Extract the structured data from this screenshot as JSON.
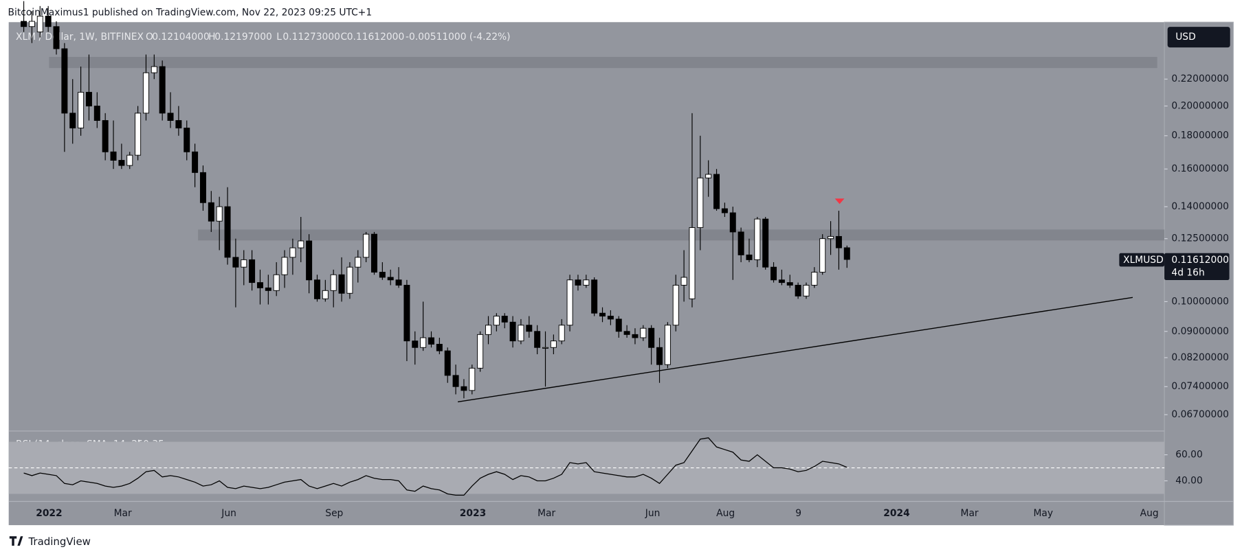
{
  "header": "BitcoinMaximus1 published on TradingView.com, Nov 22, 2023 09:25 UTC+1",
  "footer": "TradingView",
  "currency_button": "USD",
  "chart_data": {
    "type": "candlestick",
    "symbol": "XLM / Dollar, 1W, BITFINEX",
    "ohlc_legend": [
      {
        "key": "O",
        "value": "0.12104000"
      },
      {
        "key": "H",
        "value": "0.12197000"
      },
      {
        "key": "L",
        "value": "0.11273000"
      },
      {
        "key": "C",
        "value": "0.11612000"
      }
    ],
    "change": "-0.00511000 (-4.22%)",
    "price_label": {
      "symbol": "XLMUSD",
      "price": "0.11612000",
      "countdown": "4d 16h"
    },
    "log_scale": true,
    "ylim": [
      0.0634,
      0.2677
    ],
    "yticks": [
      {
        "value": 0.067,
        "label": "0.06700000"
      },
      {
        "value": 0.074,
        "label": "0.07400000"
      },
      {
        "value": 0.082,
        "label": "0.08200000"
      },
      {
        "value": 0.09,
        "label": "0.09000000"
      },
      {
        "value": 0.1,
        "label": "0.10000000"
      },
      {
        "value": 0.125,
        "label": "0.12500000"
      },
      {
        "value": 0.14,
        "label": "0.14000000"
      },
      {
        "value": 0.16,
        "label": "0.16000000"
      },
      {
        "value": 0.18,
        "label": "0.18000000"
      },
      {
        "value": 0.2,
        "label": "0.20000000"
      },
      {
        "value": 0.22,
        "label": "0.22000000"
      }
    ],
    "xticks": [
      "2022",
      "Mar",
      "Jun",
      "Sep",
      "2023",
      "Mar",
      "Jun",
      "Aug",
      "9",
      "2024",
      "Mar",
      "May",
      "Aug"
    ],
    "zones": [
      [
        0.2288,
        0.238
      ],
      [
        0.1242,
        0.1291
      ]
    ],
    "trendline": [
      0.0701,
      0.1015
    ],
    "candles": [
      [
        0.27,
        0.29,
        0.26,
        0.265
      ],
      [
        0.265,
        0.28,
        0.25,
        0.27
      ],
      [
        0.26,
        0.285,
        0.255,
        0.275
      ],
      [
        0.275,
        0.285,
        0.26,
        0.265
      ],
      [
        0.265,
        0.27,
        0.24,
        0.245
      ],
      [
        0.245,
        0.25,
        0.17,
        0.195
      ],
      [
        0.195,
        0.22,
        0.175,
        0.185
      ],
      [
        0.185,
        0.23,
        0.18,
        0.21
      ],
      [
        0.21,
        0.24,
        0.19,
        0.2
      ],
      [
        0.2,
        0.21,
        0.185,
        0.19
      ],
      [
        0.19,
        0.195,
        0.165,
        0.17
      ],
      [
        0.17,
        0.19,
        0.16,
        0.165
      ],
      [
        0.165,
        0.175,
        0.16,
        0.162
      ],
      [
        0.162,
        0.17,
        0.16,
        0.168
      ],
      [
        0.168,
        0.2,
        0.165,
        0.195
      ],
      [
        0.195,
        0.24,
        0.19,
        0.225
      ],
      [
        0.225,
        0.24,
        0.22,
        0.23
      ],
      [
        0.23,
        0.235,
        0.19,
        0.195
      ],
      [
        0.195,
        0.21,
        0.185,
        0.19
      ],
      [
        0.19,
        0.2,
        0.18,
        0.185
      ],
      [
        0.185,
        0.19,
        0.165,
        0.17
      ],
      [
        0.17,
        0.175,
        0.15,
        0.158
      ],
      [
        0.158,
        0.162,
        0.138,
        0.142
      ],
      [
        0.142,
        0.148,
        0.128,
        0.133
      ],
      [
        0.133,
        0.145,
        0.12,
        0.14
      ],
      [
        0.14,
        0.15,
        0.114,
        0.117
      ],
      [
        0.117,
        0.125,
        0.098,
        0.113
      ],
      [
        0.113,
        0.12,
        0.106,
        0.116
      ],
      [
        0.116,
        0.12,
        0.104,
        0.107
      ],
      [
        0.107,
        0.112,
        0.099,
        0.105
      ],
      [
        0.105,
        0.11,
        0.099,
        0.104
      ],
      [
        0.104,
        0.115,
        0.102,
        0.11
      ],
      [
        0.11,
        0.12,
        0.105,
        0.117
      ],
      [
        0.117,
        0.125,
        0.11,
        0.121
      ],
      [
        0.121,
        0.135,
        0.115,
        0.124
      ],
      [
        0.124,
        0.127,
        0.103,
        0.108
      ],
      [
        0.108,
        0.11,
        0.1,
        0.101
      ],
      [
        0.101,
        0.108,
        0.1,
        0.104
      ],
      [
        0.104,
        0.112,
        0.098,
        0.11
      ],
      [
        0.11,
        0.117,
        0.1,
        0.103
      ],
      [
        0.103,
        0.115,
        0.101,
        0.113
      ],
      [
        0.113,
        0.12,
        0.107,
        0.117
      ],
      [
        0.117,
        0.128,
        0.115,
        0.127
      ],
      [
        0.127,
        0.128,
        0.11,
        0.111
      ],
      [
        0.111,
        0.115,
        0.108,
        0.109
      ],
      [
        0.109,
        0.112,
        0.106,
        0.108
      ],
      [
        0.108,
        0.113,
        0.105,
        0.106
      ],
      [
        0.106,
        0.108,
        0.081,
        0.087
      ],
      [
        0.087,
        0.09,
        0.08,
        0.085
      ],
      [
        0.085,
        0.1,
        0.084,
        0.088
      ],
      [
        0.088,
        0.09,
        0.085,
        0.086
      ],
      [
        0.086,
        0.088,
        0.083,
        0.084
      ],
      [
        0.084,
        0.085,
        0.075,
        0.077
      ],
      [
        0.077,
        0.08,
        0.072,
        0.074
      ],
      [
        0.074,
        0.076,
        0.071,
        0.073
      ],
      [
        0.073,
        0.08,
        0.072,
        0.079
      ],
      [
        0.079,
        0.09,
        0.078,
        0.089
      ],
      [
        0.089,
        0.095,
        0.086,
        0.092
      ],
      [
        0.092,
        0.096,
        0.09,
        0.095
      ],
      [
        0.095,
        0.096,
        0.091,
        0.093
      ],
      [
        0.093,
        0.095,
        0.085,
        0.087
      ],
      [
        0.087,
        0.094,
        0.086,
        0.092
      ],
      [
        0.092,
        0.095,
        0.088,
        0.09
      ],
      [
        0.09,
        0.092,
        0.083,
        0.085
      ],
      [
        0.085,
        0.09,
        0.074,
        0.085
      ],
      [
        0.085,
        0.089,
        0.083,
        0.087
      ],
      [
        0.087,
        0.094,
        0.086,
        0.092
      ],
      [
        0.092,
        0.11,
        0.09,
        0.108
      ],
      [
        0.108,
        0.11,
        0.104,
        0.106
      ],
      [
        0.106,
        0.11,
        0.105,
        0.108
      ],
      [
        0.108,
        0.109,
        0.095,
        0.096
      ],
      [
        0.096,
        0.098,
        0.093,
        0.095
      ],
      [
        0.095,
        0.097,
        0.092,
        0.094
      ],
      [
        0.094,
        0.095,
        0.088,
        0.09
      ],
      [
        0.09,
        0.092,
        0.088,
        0.089
      ],
      [
        0.089,
        0.091,
        0.086,
        0.088
      ],
      [
        0.088,
        0.092,
        0.087,
        0.091
      ],
      [
        0.091,
        0.092,
        0.08,
        0.085
      ],
      [
        0.085,
        0.088,
        0.075,
        0.08
      ],
      [
        0.08,
        0.093,
        0.079,
        0.092
      ],
      [
        0.092,
        0.11,
        0.09,
        0.106
      ],
      [
        0.106,
        0.12,
        0.1,
        0.109
      ],
      [
        0.101,
        0.195,
        0.098,
        0.13
      ],
      [
        0.13,
        0.18,
        0.12,
        0.155
      ],
      [
        0.155,
        0.165,
        0.145,
        0.157
      ],
      [
        0.157,
        0.16,
        0.138,
        0.139
      ],
      [
        0.139,
        0.142,
        0.135,
        0.137
      ],
      [
        0.137,
        0.14,
        0.108,
        0.128
      ],
      [
        0.128,
        0.13,
        0.115,
        0.118
      ],
      [
        0.118,
        0.125,
        0.115,
        0.116
      ],
      [
        0.116,
        0.135,
        0.113,
        0.134
      ],
      [
        0.134,
        0.135,
        0.112,
        0.113
      ],
      [
        0.113,
        0.115,
        0.107,
        0.108
      ],
      [
        0.108,
        0.112,
        0.106,
        0.107
      ],
      [
        0.107,
        0.11,
        0.105,
        0.106
      ],
      [
        0.106,
        0.107,
        0.101,
        0.102
      ],
      [
        0.102,
        0.107,
        0.101,
        0.106
      ],
      [
        0.106,
        0.113,
        0.105,
        0.111
      ],
      [
        0.111,
        0.127,
        0.11,
        0.125
      ],
      [
        0.125,
        0.133,
        0.118,
        0.126
      ],
      [
        0.126,
        0.138,
        0.112,
        0.121
      ],
      [
        0.12104,
        0.12197,
        0.11273,
        0.11612
      ]
    ],
    "rsi": {
      "name": "RSI (14, close, SMA, 14, 2)",
      "ylim": [
        24.2,
        76.4
      ],
      "yticks": [
        {
          "value": 40,
          "label": "40.00"
        },
        {
          "value": 60,
          "label": "60.00"
        }
      ],
      "band": [
        30,
        70
      ],
      "midline": 50,
      "color": "#000000",
      "values": [
        46,
        44,
        46,
        45,
        44,
        38,
        37,
        40,
        39,
        38,
        36,
        35,
        36,
        38,
        42,
        47,
        48,
        43,
        44,
        43,
        41,
        39,
        36,
        37,
        40,
        35,
        34,
        36,
        35,
        34,
        35,
        37,
        39,
        40,
        41,
        36,
        34,
        36,
        38,
        36,
        39,
        41,
        44,
        42,
        41,
        41,
        40,
        33,
        32,
        36,
        34,
        33,
        30,
        29,
        29,
        36,
        42,
        45,
        47,
        45,
        41,
        44,
        43,
        40,
        40,
        42,
        45,
        54,
        53,
        54,
        47,
        46,
        45,
        44,
        43,
        43,
        45,
        42,
        38,
        45,
        52,
        54,
        63,
        72,
        73,
        66,
        64,
        62,
        56,
        55,
        60,
        55,
        50,
        50,
        49,
        47,
        48,
        51,
        55,
        54,
        53,
        50.35
      ]
    }
  }
}
